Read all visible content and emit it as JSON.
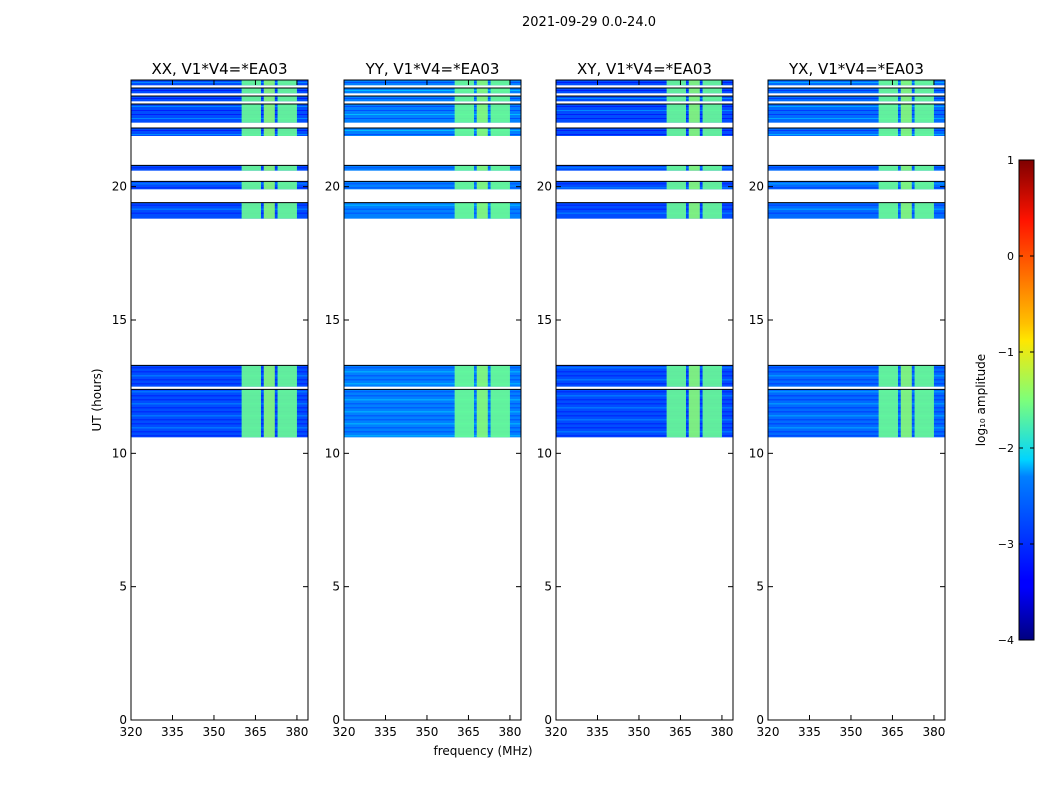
{
  "chart_data": {
    "type": "heatmap",
    "title": "2021-09-29 0.0-24.0",
    "xlabel": "frequency (MHz)",
    "ylabel": "UT (hours)",
    "xlim": [
      320,
      384
    ],
    "ylim": [
      0,
      24
    ],
    "xticks": [
      "320",
      "335",
      "350",
      "365",
      "380"
    ],
    "xtick_values": [
      320,
      335,
      350,
      365,
      380
    ],
    "yticks": [
      "0",
      "5",
      "10",
      "15",
      "20"
    ],
    "ytick_values": [
      0,
      5,
      10,
      15,
      20
    ],
    "panels": [
      {
        "title": "XX, V1*V4=*EA03",
        "bg_log_amp": -3.0
      },
      {
        "title": "YY, V1*V4=*EA03",
        "bg_log_amp": -2.75
      },
      {
        "title": "XY, V1*V4=*EA03",
        "bg_log_amp": -3.0
      },
      {
        "title": "YX, V1*V4=*EA03",
        "bg_log_amp": -2.85
      }
    ],
    "data_bands_hours": [
      [
        10.6,
        12.4
      ],
      [
        12.5,
        13.3
      ],
      [
        18.8,
        19.4
      ],
      [
        19.9,
        20.2
      ],
      [
        20.6,
        20.8
      ],
      [
        21.9,
        22.2
      ],
      [
        22.4,
        23.1
      ],
      [
        23.2,
        23.4
      ],
      [
        23.5,
        23.7
      ],
      [
        23.8,
        24.0
      ]
    ],
    "bright_freq_ranges_mhz": [
      [
        360,
        367
      ],
      [
        368,
        372
      ],
      [
        373,
        380
      ]
    ],
    "colorbar": {
      "label": "log₁₀ amplitude",
      "range": [
        -4,
        1
      ],
      "ticks": [
        "1",
        "0",
        "−1",
        "−2",
        "−3",
        "−4"
      ],
      "tick_values": [
        1,
        0,
        -1,
        -2,
        -3,
        -4
      ]
    }
  }
}
